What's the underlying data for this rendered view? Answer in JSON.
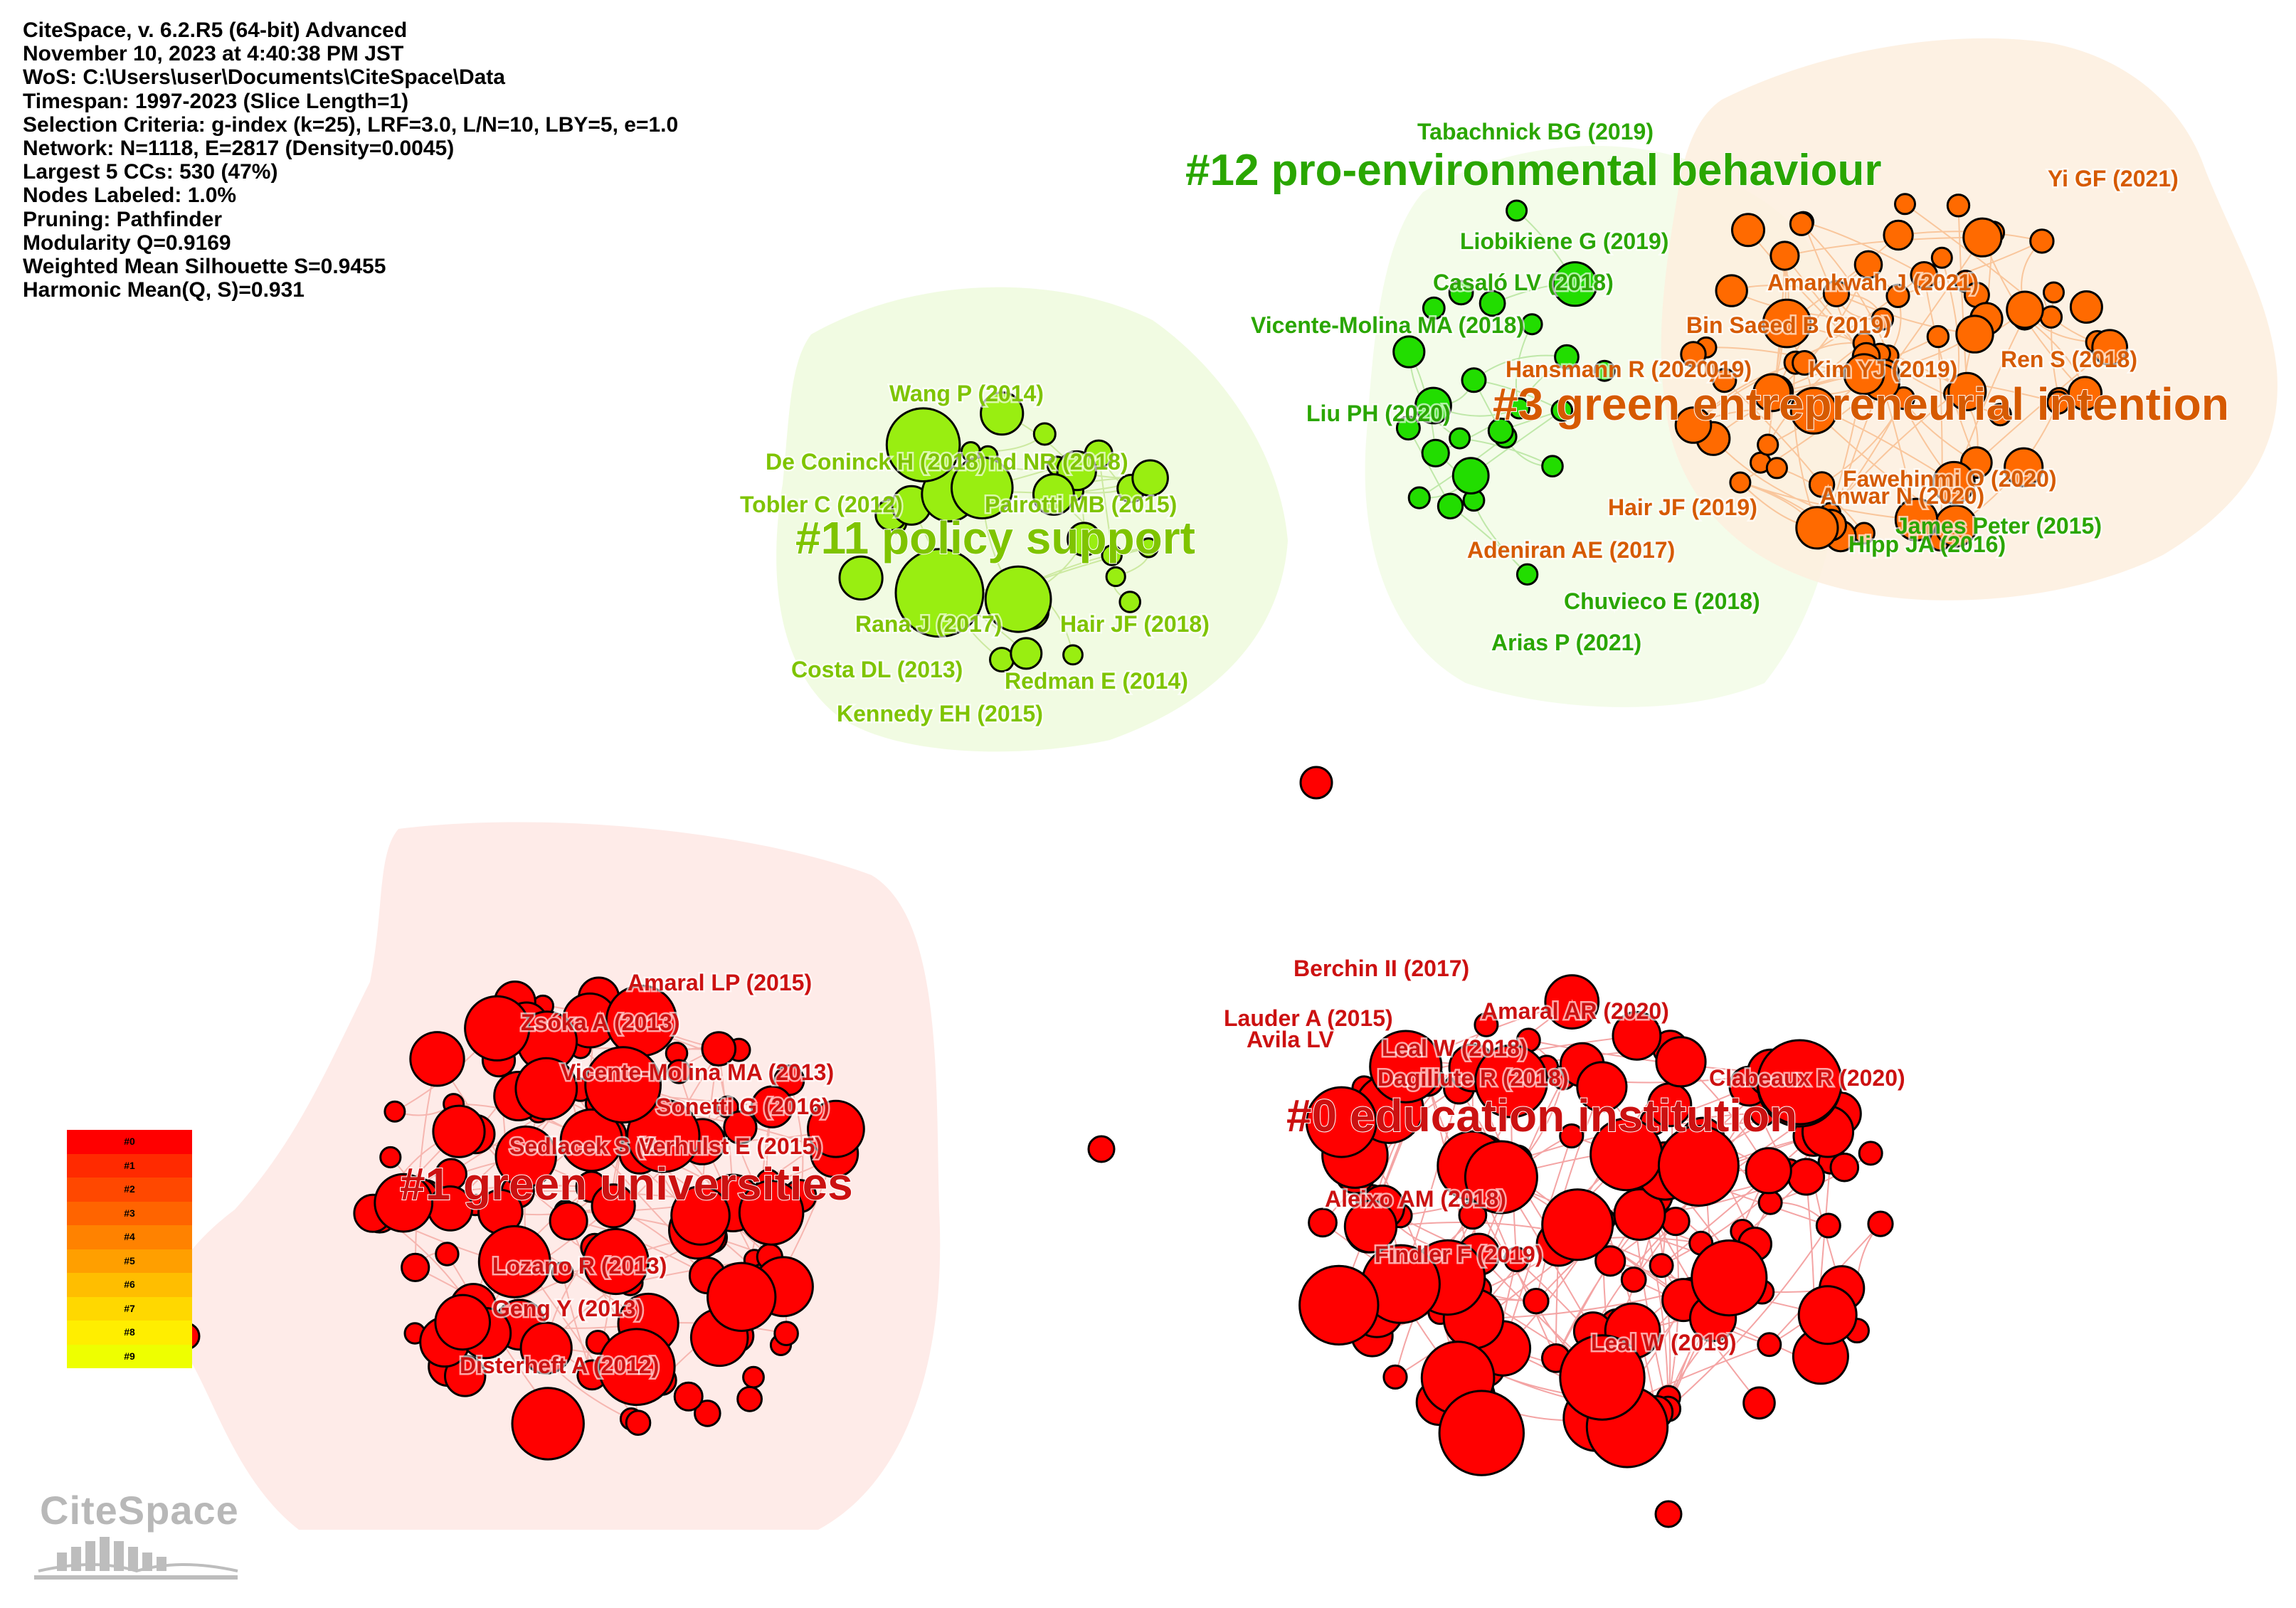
{
  "info_lines": [
    "CiteSpace, v. 6.2.R5 (64-bit) Advanced",
    "November 10, 2023 at 4:40:38 PM JST",
    "WoS: C:\\Users\\user\\Documents\\CiteSpace\\Data",
    "Timespan: 1997-2023 (Slice Length=1)",
    "Selection Criteria: g-index (k=25), LRF=3.0, L/N=10, LBY=5, e=1.0",
    "Network: N=1118, E=2817 (Density=0.0045)",
    "Largest 5 CCs: 530 (47%)",
    "Nodes Labeled: 1.0%",
    "Pruning: Pathfinder",
    "Modularity Q=0.9169",
    "Weighted Mean Silhouette S=0.9455",
    "Harmonic Mean(Q, S)=0.931"
  ],
  "colors": {
    "red": "#ff0000",
    "orange": "#ff6a00",
    "green_light": "#99ee11",
    "green": "#22dd00",
    "label_red": "#cc1111",
    "label_orange": "#d65a00",
    "label_green_dark": "#2aa600",
    "label_green_light": "#7fc400"
  },
  "clusters": [
    {
      "id": "c0",
      "label": "#0 education institution",
      "color_key": "label_red",
      "node_color": "red"
    },
    {
      "id": "c1",
      "label": "#1 green universities",
      "color_key": "label_red",
      "node_color": "red"
    },
    {
      "id": "c3",
      "label": "#3 green entrepreneurial intention",
      "color_key": "label_orange",
      "node_color": "orange"
    },
    {
      "id": "c11",
      "label": "#11 policy support",
      "color_key": "label_green_light",
      "node_color": "green_light"
    },
    {
      "id": "c12",
      "label": "#12 pro-environmental behaviour",
      "color_key": "label_green_dark",
      "node_color": "green"
    }
  ],
  "node_labels": [
    {
      "text": "Berchin II (2017)",
      "cluster": "c0"
    },
    {
      "text": "Lauder A (2015)",
      "cluster": "c0"
    },
    {
      "text": "Avila LV",
      "cluster": "c0"
    },
    {
      "text": "Amaral AR (2020)",
      "cluster": "c0"
    },
    {
      "text": "Leal W (2018)",
      "cluster": "c0"
    },
    {
      "text": "Dagiliute R (2018)",
      "cluster": "c0"
    },
    {
      "text": "Clabeaux R (2020)",
      "cluster": "c0"
    },
    {
      "text": "Aleixo AM (2018)",
      "cluster": "c0"
    },
    {
      "text": "Findler F (2019)",
      "cluster": "c0"
    },
    {
      "text": "Leal W (2019)",
      "cluster": "c0"
    },
    {
      "text": "Amaral LP (2015)",
      "cluster": "c1"
    },
    {
      "text": "Zsóka A (2013)",
      "cluster": "c1"
    },
    {
      "text": "Vicente-Molina MA (2013)",
      "cluster": "c1"
    },
    {
      "text": "Sonetti G (2016)",
      "cluster": "c1"
    },
    {
      "text": "Sedlacek S (2",
      "cluster": "c1"
    },
    {
      "text": "Verhulst E (2015)",
      "cluster": "c1"
    },
    {
      "text": "Lozano R (2013)",
      "cluster": "c1"
    },
    {
      "text": "Geng Y (2013)",
      "cluster": "c1"
    },
    {
      "text": "Disterheft A (2012)",
      "cluster": "c1"
    },
    {
      "text": "Wang P (2014)",
      "cluster": "c11"
    },
    {
      "text": "De Coninck H (2018)",
      "cluster": "c11"
    },
    {
      "text": "nd NR (2018)",
      "cluster": "c11"
    },
    {
      "text": "Tobler C (2012)",
      "cluster": "c11"
    },
    {
      "text": "Pairotti MB (2015)",
      "cluster": "c11"
    },
    {
      "text": "Rana J (2017)",
      "cluster": "c11"
    },
    {
      "text": "Hair JF (2018)",
      "cluster": "c11"
    },
    {
      "text": "Costa DL (2013)",
      "cluster": "c11"
    },
    {
      "text": "Redman E (2014)",
      "cluster": "c11"
    },
    {
      "text": "Kennedy EH (2015)",
      "cluster": "c11"
    },
    {
      "text": "Tabachnick BG (2019)",
      "cluster": "c12"
    },
    {
      "text": "Liobikiene G (2019)",
      "cluster": "c12"
    },
    {
      "text": "Casaló LV (2018)",
      "cluster": "c12"
    },
    {
      "text": "Vicente-Molina MA (2018)",
      "cluster": "c12"
    },
    {
      "text": "Liu PH (2020)",
      "cluster": "c12"
    },
    {
      "text": "Chuvieco E (2018)",
      "cluster": "c12"
    },
    {
      "text": "Arias P (2021)",
      "cluster": "c12"
    },
    {
      "text": "Hipp JA (2016)",
      "cluster": "c12"
    },
    {
      "text": "James Peter (2015)",
      "cluster": "c12"
    },
    {
      "text": "Yi GF (2021)",
      "cluster": "c3"
    },
    {
      "text": "Amankwah J (2021)",
      "cluster": "c3"
    },
    {
      "text": "Bin Saeed B (2019)",
      "cluster": "c3"
    },
    {
      "text": "Hansmann R (2020)",
      "cluster": "c3"
    },
    {
      "text": "019)",
      "cluster": "c3"
    },
    {
      "text": "Kim YJ (2019)",
      "cluster": "c3"
    },
    {
      "text": "Ren S (2018)",
      "cluster": "c3"
    },
    {
      "text": "Fawehinmi O (2020)",
      "cluster": "c3"
    },
    {
      "text": "Anwar N (2020)",
      "cluster": "c3"
    },
    {
      "text": "Hair JF (2019)",
      "cluster": "c3"
    },
    {
      "text": "Adeniran AE (2017)",
      "cluster": "c3"
    }
  ],
  "legend": {
    "entries": [
      "#0",
      "#1",
      "#2",
      "#3",
      "#4",
      "#5",
      "#6",
      "#7",
      "#8",
      "#9"
    ],
    "colors": [
      "#ff0000",
      "#ff2a00",
      "#ff4800",
      "#ff6400",
      "#ff8200",
      "#ff9f00",
      "#ffbe00",
      "#ffd800",
      "#ffee00",
      "#eeff00"
    ]
  },
  "logo": {
    "text": "CiteSpace"
  }
}
